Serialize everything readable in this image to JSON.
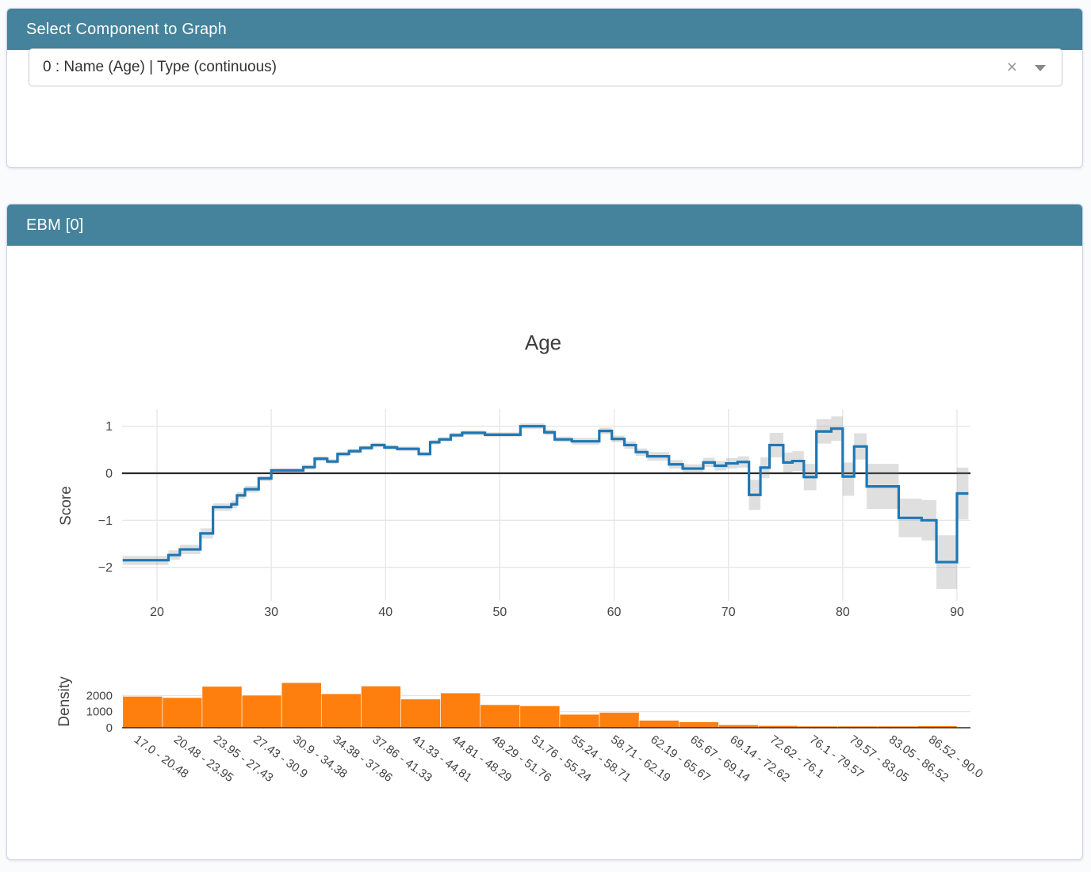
{
  "panels": {
    "selector": {
      "title": "Select Component to Graph",
      "dropdown": {
        "value": "0 : Name (Age) | Type (continuous)",
        "clear_icon": "×"
      }
    },
    "graph": {
      "title": "EBM [0]"
    }
  },
  "colors": {
    "header_bg": "#45829b",
    "header_text": "#ffffff",
    "card_border": "#ccd3e8",
    "page_bg": "#fafbfc",
    "line": "#1f77b4",
    "band": "rgba(128,128,128,0.25)",
    "bar": "#ff7f0e",
    "zeroline": "#2a2a2a",
    "grid": "#e6e6e6",
    "tick_text": "#444444",
    "title_text": "#3d3d3d"
  },
  "chart_data": {
    "type": "line",
    "title": "Age",
    "legend": "none",
    "grid": "on",
    "main": {
      "type": "step-line-with-error-band",
      "ylabel": "Score",
      "xlim": [
        16.9,
        91.2
      ],
      "ylim": [
        -2.7,
        1.37
      ],
      "xticks": [
        20,
        30,
        40,
        50,
        60,
        70,
        80,
        90
      ],
      "yticks": [
        1,
        0,
        -1,
        -2
      ],
      "x_end": 91.0,
      "steps_x_y_lo_hi": [
        [
          17.0,
          -1.85,
          -1.95,
          -1.76
        ],
        [
          21.0,
          -1.74,
          -1.84,
          -1.64
        ],
        [
          22.0,
          -1.62,
          -1.72,
          -1.52
        ],
        [
          23.8,
          -1.28,
          -1.39,
          -1.17
        ],
        [
          24.9,
          -0.72,
          -0.8,
          -0.64
        ],
        [
          26.5,
          -0.66,
          -0.74,
          -0.58
        ],
        [
          27.0,
          -0.47,
          -0.54,
          -0.4
        ],
        [
          27.7,
          -0.34,
          -0.41,
          -0.27
        ],
        [
          28.9,
          -0.11,
          -0.17,
          -0.05
        ],
        [
          30.0,
          0.06,
          0.01,
          0.11
        ],
        [
          32.8,
          0.13,
          0.08,
          0.18
        ],
        [
          33.8,
          0.31,
          0.26,
          0.36
        ],
        [
          34.9,
          0.25,
          0.2,
          0.3
        ],
        [
          35.8,
          0.41,
          0.36,
          0.46
        ],
        [
          36.8,
          0.47,
          0.42,
          0.52
        ],
        [
          37.8,
          0.54,
          0.49,
          0.59
        ],
        [
          38.8,
          0.6,
          0.55,
          0.65
        ],
        [
          39.9,
          0.55,
          0.5,
          0.6
        ],
        [
          41.0,
          0.52,
          0.47,
          0.57
        ],
        [
          42.9,
          0.41,
          0.36,
          0.46
        ],
        [
          43.9,
          0.66,
          0.61,
          0.71
        ],
        [
          44.7,
          0.72,
          0.67,
          0.77
        ],
        [
          45.7,
          0.81,
          0.76,
          0.86
        ],
        [
          46.7,
          0.86,
          0.81,
          0.91
        ],
        [
          48.7,
          0.82,
          0.77,
          0.87
        ],
        [
          51.8,
          1.0,
          0.94,
          1.06
        ],
        [
          53.9,
          0.87,
          0.81,
          0.93
        ],
        [
          54.8,
          0.72,
          0.66,
          0.78
        ],
        [
          56.3,
          0.68,
          0.61,
          0.75
        ],
        [
          58.7,
          0.9,
          0.83,
          0.97
        ],
        [
          59.8,
          0.73,
          0.66,
          0.8
        ],
        [
          60.9,
          0.6,
          0.52,
          0.68
        ],
        [
          61.9,
          0.45,
          0.37,
          0.53
        ],
        [
          62.9,
          0.36,
          0.27,
          0.45
        ],
        [
          64.8,
          0.19,
          0.1,
          0.28
        ],
        [
          66.0,
          0.1,
          0.01,
          0.19
        ],
        [
          67.8,
          0.23,
          0.13,
          0.33
        ],
        [
          68.8,
          0.16,
          0.06,
          0.26
        ],
        [
          69.8,
          0.21,
          0.1,
          0.32
        ],
        [
          70.8,
          0.24,
          0.12,
          0.36
        ],
        [
          71.8,
          -0.46,
          -0.78,
          -0.14
        ],
        [
          72.8,
          0.12,
          -0.1,
          0.34
        ],
        [
          73.6,
          0.6,
          0.34,
          0.86
        ],
        [
          74.8,
          0.23,
          0.02,
          0.44
        ],
        [
          75.6,
          0.26,
          0.05,
          0.47
        ],
        [
          76.6,
          -0.08,
          -0.36,
          0.2
        ],
        [
          77.7,
          0.89,
          0.63,
          1.15
        ],
        [
          79.0,
          0.95,
          0.69,
          1.21
        ],
        [
          80.0,
          -0.07,
          -0.48,
          0.23
        ],
        [
          81.0,
          0.57,
          0.29,
          0.85
        ],
        [
          82.1,
          -0.28,
          -0.76,
          0.2
        ],
        [
          84.9,
          -0.95,
          -1.36,
          -0.54
        ],
        [
          86.9,
          -1.0,
          -1.43,
          -0.57
        ],
        [
          88.2,
          -1.89,
          -2.46,
          -1.32
        ],
        [
          90.0,
          -0.43,
          -0.98,
          0.12
        ]
      ]
    },
    "density": {
      "type": "bar",
      "ylabel": "Density",
      "yticks": [
        0,
        1000,
        2000
      ],
      "bin_edges": [
        17.0,
        20.48,
        23.95,
        27.43,
        30.9,
        34.38,
        37.86,
        41.33,
        44.81,
        48.29,
        51.76,
        55.24,
        58.71,
        62.19,
        65.67,
        69.14,
        72.62,
        76.1,
        79.57,
        83.05,
        86.52,
        90.0
      ],
      "categories": [
        "17.0 - 20.48",
        "20.48 - 23.95",
        "23.95 - 27.43",
        "27.43 - 30.9",
        "30.9 - 34.38",
        "34.38 - 37.86",
        "37.86 - 41.33",
        "41.33 - 44.81",
        "44.81 - 48.29",
        "48.29 - 51.76",
        "51.76 - 55.24",
        "55.24 - 58.71",
        "58.71 - 62.19",
        "62.19 - 65.67",
        "65.67 - 69.14",
        "69.14 - 72.62",
        "72.62 - 76.1",
        "76.1 - 79.57",
        "79.57 - 83.05",
        "83.05 - 86.52",
        "86.52 - 90.0"
      ],
      "values": [
        1950,
        1870,
        2570,
        2020,
        2800,
        2110,
        2590,
        1780,
        2160,
        1430,
        1360,
        830,
        950,
        460,
        360,
        180,
        130,
        80,
        60,
        40,
        115
      ]
    }
  }
}
